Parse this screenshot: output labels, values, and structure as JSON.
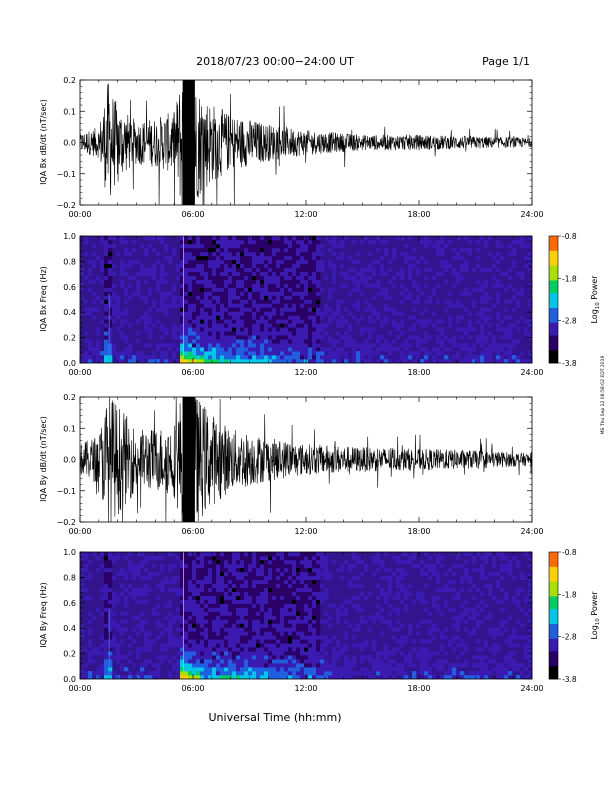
{
  "header": {
    "title": "2018/07/23  00:00−24:00 UT",
    "page": "Page 1/1"
  },
  "side_note": "MS Thu Sep 12 08:58:02 EDT 2019",
  "x_axis": {
    "label": "Universal Time (hh:mm)",
    "ticks": [
      "00:00",
      "06:00",
      "12:00",
      "18:00",
      "24:00"
    ],
    "range_hours": [
      0,
      24
    ]
  },
  "colorbar": {
    "label": "Log10 Power",
    "label_main": "Log",
    "label_sub": "10",
    "label_rest": " Power",
    "ticks": [
      "-0.8",
      "-1.8",
      "-2.8",
      "-3.8"
    ],
    "range": [
      -3.8,
      -0.8
    ],
    "colors": [
      "#000000",
      "#2a0066",
      "#3a1ab0",
      "#1f5fe0",
      "#00c8e8",
      "#00d060",
      "#a8e000",
      "#ffd000",
      "#ff6a00",
      "#ff0000"
    ]
  },
  "chart_data": [
    {
      "type": "line",
      "ylabel": "IQA Bx dB/dt (nT/sec)",
      "ylim": [
        -0.2,
        0.2
      ],
      "yticks": [
        "0.2",
        "0.1",
        "0.0",
        "−0.1",
        "−0.2"
      ],
      "xlim": [
        0,
        24
      ],
      "amplitude_envelope": {
        "hours": [
          0,
          1,
          1.5,
          2,
          3,
          4,
          5,
          5.5,
          6,
          7,
          8,
          10,
          12,
          15,
          18,
          21,
          24
        ],
        "amplitude": [
          0.03,
          0.05,
          0.2,
          0.12,
          0.07,
          0.08,
          0.1,
          0.25,
          0.2,
          0.13,
          0.09,
          0.06,
          0.04,
          0.025,
          0.025,
          0.02,
          0.015
        ]
      }
    },
    {
      "type": "heatmap",
      "ylabel": "IQA Bx Freq (Hz)",
      "ylim": [
        0,
        1.0
      ],
      "yticks": [
        "1.0",
        "0.8",
        "0.6",
        "0.4",
        "0.2",
        "0.0"
      ],
      "xlim": [
        0,
        24
      ],
      "color_range": [
        -3.8,
        -0.8
      ]
    },
    {
      "type": "line",
      "ylabel": "IQA By dB/dt (nT/sec)",
      "ylim": [
        -0.2,
        0.2
      ],
      "yticks": [
        "0.2",
        "0.1",
        "0.0",
        "−0.1",
        "−0.2"
      ],
      "xlim": [
        0,
        24
      ],
      "amplitude_envelope": {
        "hours": [
          0,
          1,
          1.5,
          2,
          3,
          4,
          5,
          5.5,
          6,
          7,
          8,
          10,
          12,
          15,
          18,
          21,
          24
        ],
        "amplitude": [
          0.05,
          0.08,
          0.22,
          0.18,
          0.1,
          0.1,
          0.12,
          0.25,
          0.22,
          0.15,
          0.1,
          0.07,
          0.05,
          0.04,
          0.035,
          0.03,
          0.02
        ]
      }
    },
    {
      "type": "heatmap",
      "ylabel": "IQA By Freq (Hz)",
      "ylim": [
        0,
        1.0
      ],
      "yticks": [
        "1.0",
        "0.8",
        "0.6",
        "0.4",
        "0.2",
        "0.0"
      ],
      "xlim": [
        0,
        24
      ],
      "color_range": [
        -3.8,
        -0.8
      ]
    }
  ]
}
